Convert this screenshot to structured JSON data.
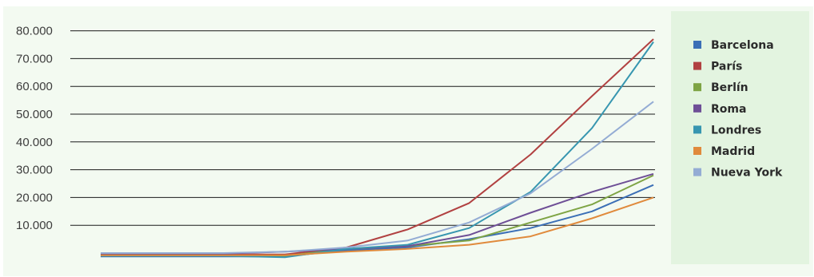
{
  "chart_data": {
    "type": "line",
    "title": "",
    "xlabel": "",
    "ylabel": "",
    "categories": [
      "",
      "",
      "",
      "",
      "",
      "",
      "",
      "",
      "",
      ""
    ],
    "yticks": [
      "10.000",
      "20.000",
      "30.000",
      "40.000",
      "50.000",
      "60.000",
      "70.000",
      "80.000"
    ],
    "ylim": [
      0,
      80000
    ],
    "grid": true,
    "legend_position": "right",
    "series": [
      {
        "name": "Barcelona",
        "color": "#3b6fb6",
        "values": [
          -1200,
          -1200,
          -1200,
          -1200,
          1000,
          2000,
          5000,
          9000,
          15000,
          24500
        ]
      },
      {
        "name": "París",
        "color": "#b14141",
        "values": [
          -500,
          -500,
          -500,
          -500,
          2000,
          8500,
          18000,
          35500,
          56500,
          77000
        ]
      },
      {
        "name": "Berlín",
        "color": "#7ea444",
        "values": [
          -1000,
          -1000,
          -1000,
          -1000,
          1500,
          2500,
          4500,
          11000,
          17500,
          28000
        ]
      },
      {
        "name": "Roma",
        "color": "#6e4f96",
        "values": [
          -200,
          -200,
          -200,
          500,
          1500,
          2500,
          6500,
          14500,
          22000,
          28500
        ]
      },
      {
        "name": "Londres",
        "color": "#3796b0",
        "values": [
          -1000,
          -1000,
          -1000,
          -1500,
          1500,
          3000,
          9000,
          22000,
          45000,
          76000
        ]
      },
      {
        "name": "Madrid",
        "color": "#e08a3c",
        "values": [
          -800,
          -800,
          -800,
          -800,
          500,
          1500,
          3000,
          6000,
          12500,
          20000
        ]
      },
      {
        "name": "Nueva York",
        "color": "#94acd4",
        "values": [
          0,
          0,
          0,
          500,
          2000,
          4500,
          11000,
          21500,
          37500,
          54500
        ]
      }
    ]
  }
}
